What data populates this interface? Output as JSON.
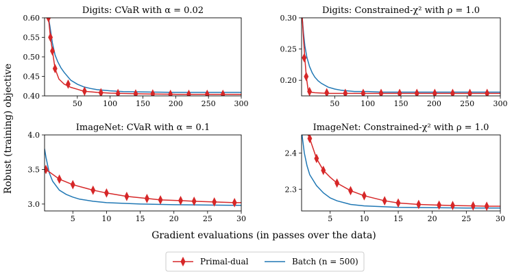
{
  "figure": {
    "ylabel": "Robust (training) objective",
    "xlabel": "Gradient evaluations (in passes over the data)"
  },
  "legend": {
    "placement": "bottom-center",
    "entries": [
      {
        "label": "Primal-dual",
        "color": "#d62728",
        "marker": "thin-diamond"
      },
      {
        "label": "Batch (n = 500)",
        "color": "#1f77b4",
        "marker": "none"
      }
    ]
  },
  "chart_data": [
    {
      "type": "line",
      "title": "Digits: CVaR with α = 0.02",
      "xlim": [
        0,
        300
      ],
      "ylim": [
        0.4,
        0.6
      ],
      "xticks": [
        50,
        100,
        150,
        200,
        250,
        300
      ],
      "xtick_labels": [
        "50",
        "100",
        "150",
        "200",
        "250",
        "300"
      ],
      "yticks": [
        0.4,
        0.45,
        0.5,
        0.55,
        0.6
      ],
      "ytick_labels": [
        "0.40",
        "0.45",
        "0.50",
        "0.55",
        "0.60"
      ],
      "series": [
        {
          "name": "Primal-dual",
          "color": "#d62728",
          "x": [
            4,
            6,
            9,
            12,
            16,
            22,
            30,
            40,
            50,
            60,
            80,
            100,
            130,
            160,
            200,
            250,
            300
          ],
          "y": [
            0.62,
            0.6,
            0.55,
            0.515,
            0.47,
            0.443,
            0.43,
            0.422,
            0.417,
            0.412,
            0.409,
            0.407,
            0.406,
            0.405,
            0.404,
            0.404,
            0.404
          ],
          "markers_x": [
            6,
            9,
            12,
            16,
            36,
            61,
            86,
            112,
            139,
            165,
            192,
            220,
            248,
            272
          ],
          "markers_y": [
            0.6,
            0.55,
            0.515,
            0.47,
            0.43,
            0.412,
            0.408,
            0.406,
            0.405,
            0.405,
            0.404,
            0.404,
            0.404,
            0.404
          ]
        },
        {
          "name": "Batch (n = 500)",
          "color": "#1f77b4",
          "x": [
            4,
            8,
            12,
            16,
            20,
            25,
            30,
            40,
            50,
            60,
            70,
            80,
            100,
            120,
            150,
            200,
            250,
            300
          ],
          "y": [
            0.62,
            0.58,
            0.535,
            0.505,
            0.488,
            0.472,
            0.46,
            0.44,
            0.43,
            0.423,
            0.419,
            0.416,
            0.413,
            0.411,
            0.41,
            0.409,
            0.409,
            0.409
          ]
        }
      ]
    },
    {
      "type": "line",
      "title": "Digits: Constrained-χ² with ρ = 1.0",
      "xlim": [
        0,
        300
      ],
      "ylim": [
        0.175,
        0.3
      ],
      "xticks": [
        50,
        100,
        150,
        200,
        250,
        300
      ],
      "xtick_labels": [
        "50",
        "100",
        "150",
        "200",
        "250",
        "300"
      ],
      "yticks": [
        0.2,
        0.25,
        0.3
      ],
      "ytick_labels": [
        "0.20",
        "0.25",
        "0.30"
      ],
      "series": [
        {
          "name": "Primal-dual",
          "color": "#d62728",
          "x": [
            1,
            3,
            5,
            7,
            10,
            13,
            20,
            40,
            70,
            100,
            150,
            200,
            250,
            300
          ],
          "y": [
            0.3,
            0.265,
            0.235,
            0.207,
            0.183,
            0.181,
            0.18,
            0.179,
            0.179,
            0.179,
            0.179,
            0.179,
            0.179,
            0.179
          ],
          "markers_x": [
            4,
            7,
            12,
            38,
            66,
            93,
            120,
            148,
            174,
            201,
            228,
            254,
            280
          ],
          "markers_y": [
            0.236,
            0.206,
            0.182,
            0.18,
            0.179,
            0.179,
            0.179,
            0.179,
            0.179,
            0.179,
            0.179,
            0.179,
            0.179
          ]
        },
        {
          "name": "Batch (n = 500)",
          "color": "#1f77b4",
          "x": [
            1,
            3,
            5,
            8,
            12,
            16,
            20,
            25,
            30,
            40,
            50,
            60,
            80,
            100,
            120,
            150,
            200,
            250,
            300
          ],
          "y": [
            0.3,
            0.275,
            0.255,
            0.237,
            0.222,
            0.212,
            0.205,
            0.199,
            0.195,
            0.189,
            0.186,
            0.184,
            0.182,
            0.182,
            0.181,
            0.181,
            0.181,
            0.181,
            0.181
          ]
        }
      ]
    },
    {
      "type": "line",
      "title": "ImageNet: CVaR with α = 0.1",
      "xlim": [
        0.8,
        30
      ],
      "ylim": [
        2.9,
        4.0
      ],
      "xticks": [
        5,
        10,
        15,
        20,
        25,
        30
      ],
      "xtick_labels": [
        "5",
        "10",
        "15",
        "20",
        "25",
        "30"
      ],
      "yticks": [
        3.0,
        3.5,
        4.0
      ],
      "ytick_labels": [
        "3.0",
        "3.5",
        "4.0"
      ],
      "series": [
        {
          "name": "Primal-dual",
          "color": "#d62728",
          "x": [
            0.8,
            1,
            3,
            5,
            8,
            10,
            13,
            16,
            18,
            21,
            23,
            26,
            29,
            30
          ],
          "y": [
            3.52,
            3.5,
            3.36,
            3.28,
            3.2,
            3.16,
            3.11,
            3.08,
            3.06,
            3.05,
            3.04,
            3.03,
            3.02,
            3.02
          ],
          "markers_x": [
            1,
            3,
            5,
            8,
            10,
            13,
            16,
            18,
            21,
            23,
            26,
            29
          ],
          "markers_y": [
            3.5,
            3.36,
            3.28,
            3.2,
            3.16,
            3.11,
            3.08,
            3.06,
            3.05,
            3.04,
            3.03,
            3.02
          ]
        },
        {
          "name": "Batch (n = 500)",
          "color": "#1f77b4",
          "x": [
            0.8,
            1,
            1.5,
            2,
            3,
            4,
            5,
            6,
            8,
            10,
            15,
            20,
            25,
            30
          ],
          "y": [
            3.8,
            3.68,
            3.45,
            3.33,
            3.2,
            3.14,
            3.1,
            3.07,
            3.04,
            3.02,
            3.0,
            2.99,
            2.985,
            2.98
          ]
        }
      ]
    },
    {
      "type": "line",
      "title": "ImageNet: Constrained-χ² with ρ = 1.0",
      "xlim": [
        0.8,
        30
      ],
      "ylim": [
        2.24,
        2.45
      ],
      "xticks": [
        5,
        10,
        15,
        20,
        25,
        30
      ],
      "xtick_labels": [
        "5",
        "10",
        "15",
        "20",
        "25",
        "30"
      ],
      "yticks": [
        2.3,
        2.4
      ],
      "ytick_labels": [
        "2.3",
        "2.4"
      ],
      "series": [
        {
          "name": "Primal-dual",
          "color": "#d62728",
          "x": [
            1.5,
            2,
            3,
            4,
            5,
            6,
            8,
            10,
            13,
            15,
            18,
            21,
            23,
            26,
            28,
            30
          ],
          "y": [
            2.46,
            2.44,
            2.385,
            2.352,
            2.333,
            2.317,
            2.296,
            2.282,
            2.268,
            2.262,
            2.258,
            2.256,
            2.255,
            2.254,
            2.253,
            2.253
          ],
          "markers_x": [
            2,
            3,
            4,
            6,
            8,
            10,
            13,
            15,
            18,
            21,
            23,
            26,
            28
          ],
          "markers_y": [
            2.44,
            2.385,
            2.352,
            2.317,
            2.296,
            2.282,
            2.268,
            2.262,
            2.258,
            2.256,
            2.255,
            2.254,
            2.253
          ]
        },
        {
          "name": "Batch (n = 500)",
          "color": "#1f77b4",
          "x": [
            0.8,
            1.2,
            1.6,
            2,
            3,
            4,
            5,
            6,
            8,
            10,
            15,
            20,
            25,
            30
          ],
          "y": [
            2.46,
            2.4,
            2.365,
            2.34,
            2.31,
            2.29,
            2.276,
            2.268,
            2.258,
            2.254,
            2.25,
            2.249,
            2.248,
            2.248
          ]
        }
      ]
    }
  ]
}
